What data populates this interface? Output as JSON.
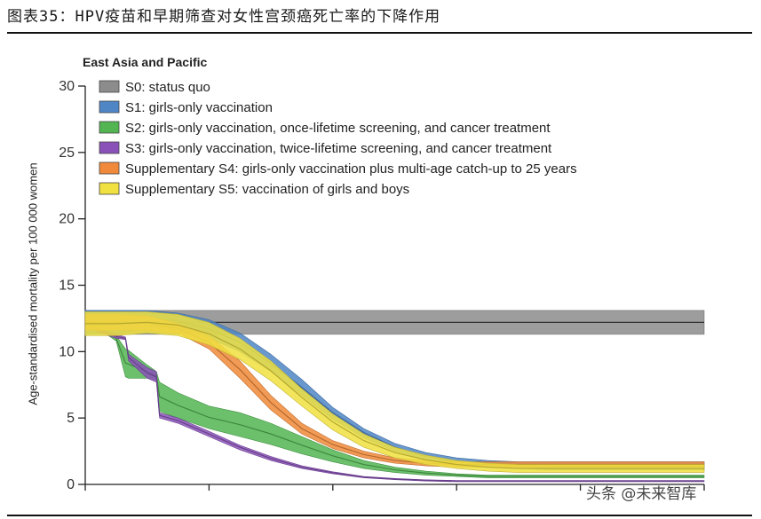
{
  "figure_caption": "图表35：HPV疫苗和早期筛查对女性宫颈癌死亡率的下降作用",
  "watermark": "头条 @未来智库",
  "chart_data": {
    "type": "area",
    "title": "East Asia and Pacific",
    "xlabel": "",
    "ylabel": "Age-standardised mortality per 100 000 women",
    "ylim": [
      0,
      30
    ],
    "xlim": [
      0,
      100
    ],
    "yticks": [
      0,
      5,
      10,
      15,
      20,
      25,
      30
    ],
    "xticks": [
      0,
      20,
      40,
      60,
      80,
      100
    ],
    "xtick_labels": [
      "",
      "",
      "",
      "",
      "",
      ""
    ],
    "legend_position": "top-left",
    "series": [
      {
        "name": "S0: status quo",
        "color": "#8c8c8c",
        "x": [
          0,
          100
        ],
        "lower": [
          11.3,
          11.3
        ],
        "upper": [
          13.1,
          13.1
        ],
        "mid": [
          12.2,
          12.2
        ]
      },
      {
        "name": "S1: girls-only vaccination",
        "color": "#4f86c6",
        "x": [
          0,
          5,
          10,
          15,
          20,
          25,
          30,
          35,
          40,
          45,
          50,
          55,
          60,
          65,
          70,
          75,
          80,
          85,
          90,
          95,
          100
        ],
        "lower": [
          11.3,
          11.3,
          11.8,
          11.6,
          11.0,
          10.0,
          8.5,
          6.7,
          4.9,
          3.5,
          2.5,
          1.9,
          1.5,
          1.3,
          1.2,
          1.1,
          1.1,
          1.1,
          1.1,
          1.1,
          1.1
        ],
        "upper": [
          13.1,
          13.1,
          13.1,
          12.9,
          12.4,
          11.4,
          9.8,
          7.9,
          5.8,
          4.2,
          3.1,
          2.4,
          2.0,
          1.8,
          1.7,
          1.7,
          1.7,
          1.7,
          1.7,
          1.7,
          1.7
        ],
        "mid": [
          12.2,
          12.2,
          12.5,
          12.3,
          11.7,
          10.7,
          9.1,
          7.3,
          5.4,
          3.9,
          2.8,
          2.1,
          1.7,
          1.5,
          1.4,
          1.4,
          1.4,
          1.4,
          1.4,
          1.4,
          1.4
        ]
      },
      {
        "name": "S2: girls-only vaccination, once-lifetime screening, and cancer treatment",
        "color": "#52b552",
        "x": [
          0,
          2.5,
          5,
          6.5,
          7,
          10,
          11.5,
          12,
          15,
          20,
          25,
          30,
          35,
          40,
          45,
          50,
          55,
          60,
          65,
          70,
          75,
          80,
          85,
          90,
          95,
          100
        ],
        "lower": [
          12.2,
          11.6,
          10.8,
          8.1,
          8.0,
          8.0,
          7.9,
          5.5,
          5.0,
          4.2,
          3.6,
          3.0,
          2.3,
          1.7,
          1.2,
          0.9,
          0.7,
          0.6,
          0.5,
          0.5,
          0.5,
          0.5,
          0.5,
          0.5,
          0.5,
          0.5
        ],
        "upper": [
          12.3,
          11.9,
          11.2,
          10.2,
          10.1,
          9.0,
          8.5,
          7.7,
          6.9,
          5.9,
          5.4,
          4.6,
          3.6,
          2.6,
          1.8,
          1.3,
          1.0,
          0.8,
          0.7,
          0.7,
          0.7,
          0.7,
          0.7,
          0.7,
          0.7,
          0.7
        ],
        "mid": [
          12.25,
          11.75,
          11.0,
          9.15,
          9.05,
          8.5,
          8.2,
          6.6,
          5.95,
          5.05,
          4.5,
          3.8,
          2.95,
          2.15,
          1.5,
          1.1,
          0.85,
          0.7,
          0.6,
          0.6,
          0.6,
          0.6,
          0.6,
          0.6,
          0.6,
          0.6
        ]
      },
      {
        "name": "S3: girls-only vaccination, twice-lifetime screening, and cancer treatment",
        "color": "#8a52b8",
        "x": [
          0,
          2.5,
          5,
          6.5,
          7,
          10,
          11.5,
          12,
          15,
          20,
          25,
          30,
          35,
          40,
          45,
          50,
          55,
          60,
          65,
          70,
          75,
          80,
          85,
          90,
          95,
          100
        ],
        "lower": [
          12.0,
          11.4,
          11.0,
          10.9,
          9.3,
          8.0,
          7.7,
          5.0,
          4.6,
          3.6,
          2.6,
          1.8,
          1.2,
          0.8,
          0.5,
          0.35,
          0.25,
          0.2,
          0.2,
          0.2,
          0.2,
          0.2,
          0.2,
          0.2,
          0.2,
          0.2
        ],
        "upper": [
          12.2,
          11.7,
          11.3,
          11.1,
          9.8,
          8.8,
          8.5,
          5.4,
          5.0,
          4.0,
          2.95,
          2.1,
          1.4,
          0.95,
          0.6,
          0.45,
          0.35,
          0.3,
          0.3,
          0.3,
          0.3,
          0.3,
          0.3,
          0.3,
          0.3,
          0.3
        ],
        "mid": [
          12.1,
          11.55,
          11.15,
          11.0,
          9.55,
          8.4,
          8.1,
          5.2,
          4.8,
          3.8,
          2.8,
          1.95,
          1.3,
          0.88,
          0.55,
          0.4,
          0.3,
          0.25,
          0.25,
          0.25,
          0.25,
          0.25,
          0.25,
          0.25,
          0.25,
          0.25
        ]
      },
      {
        "name": "Supplementary S4: girls-only vaccination plus multi-age catch-up to 25 years",
        "color": "#f08a3a",
        "x": [
          0,
          5,
          10,
          15,
          20,
          25,
          30,
          35,
          40,
          45,
          50,
          55,
          60,
          65,
          70,
          75,
          80,
          85,
          90,
          95,
          100
        ],
        "lower": [
          11.6,
          11.6,
          11.6,
          11.4,
          10.2,
          8.0,
          5.6,
          3.8,
          2.7,
          2.0,
          1.6,
          1.4,
          1.3,
          1.3,
          1.3,
          1.3,
          1.3,
          1.3,
          1.3,
          1.3,
          1.3
        ],
        "upper": [
          12.8,
          12.8,
          12.7,
          12.1,
          11.2,
          9.3,
          6.7,
          4.6,
          3.3,
          2.5,
          2.0,
          1.8,
          1.7,
          1.7,
          1.7,
          1.7,
          1.7,
          1.7,
          1.7,
          1.7,
          1.7
        ],
        "mid": [
          12.2,
          12.2,
          12.15,
          11.75,
          10.7,
          8.65,
          6.15,
          4.2,
          3.0,
          2.25,
          1.8,
          1.6,
          1.5,
          1.5,
          1.5,
          1.5,
          1.5,
          1.5,
          1.5,
          1.5,
          1.5
        ]
      },
      {
        "name": "Supplementary S5: vaccination of girls and boys",
        "color": "#f0e040",
        "x": [
          0,
          5,
          10,
          15,
          20,
          25,
          30,
          35,
          40,
          45,
          50,
          55,
          60,
          65,
          70,
          75,
          80,
          85,
          90,
          95,
          100
        ],
        "lower": [
          11.2,
          11.2,
          11.4,
          11.2,
          10.5,
          9.4,
          7.8,
          5.9,
          4.1,
          2.8,
          2.0,
          1.5,
          1.2,
          1.0,
          0.9,
          0.9,
          0.9,
          0.9,
          0.9,
          0.9,
          0.9
        ],
        "upper": [
          13.0,
          13.0,
          13.0,
          12.8,
          12.2,
          11.0,
          9.3,
          7.2,
          5.3,
          3.8,
          2.8,
          2.2,
          1.8,
          1.6,
          1.5,
          1.5,
          1.5,
          1.5,
          1.5,
          1.5,
          1.5
        ],
        "mid": [
          12.1,
          12.1,
          12.2,
          12.0,
          11.35,
          10.2,
          8.55,
          6.55,
          4.7,
          3.3,
          2.4,
          1.85,
          1.5,
          1.3,
          1.2,
          1.2,
          1.2,
          1.2,
          1.2,
          1.2,
          1.2
        ]
      }
    ]
  }
}
